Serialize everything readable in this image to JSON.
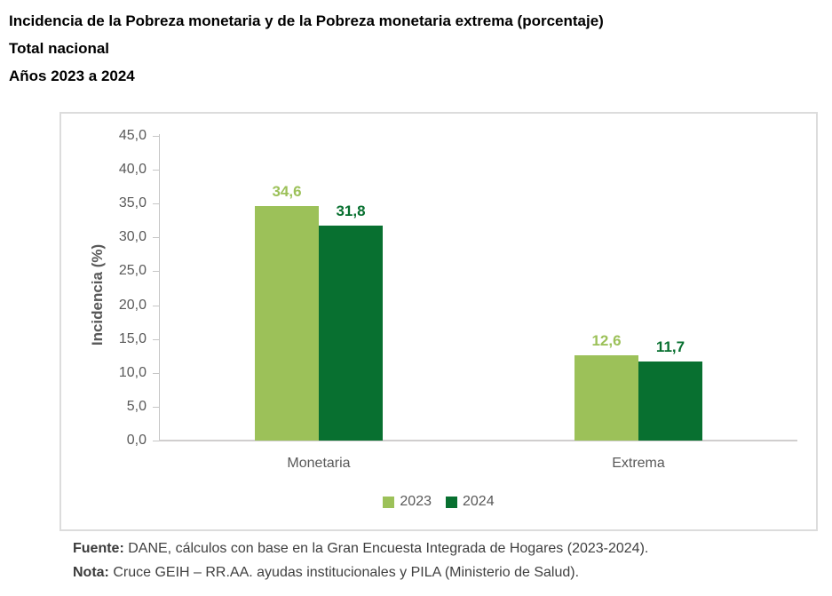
{
  "title": {
    "line1": "Incidencia de la Pobreza monetaria y de la Pobreza monetaria extrema (porcentaje)",
    "line2": "Total nacional",
    "line3": "Años 2023 a 2024"
  },
  "chart_data": {
    "type": "bar",
    "categories": [
      "Monetaria",
      "Extrema"
    ],
    "series": [
      {
        "name": "2023",
        "values": [
          34.6,
          12.6
        ],
        "color": "#9cc159"
      },
      {
        "name": "2024",
        "values": [
          31.8,
          11.7
        ],
        "color": "#087030"
      }
    ],
    "title": "Incidencia de la Pobreza monetaria y de la Pobreza monetaria extrema (porcentaje)",
    "xlabel": "",
    "ylabel": "Incidencia (%)",
    "ylim": [
      0,
      45
    ],
    "ytick_step": 5,
    "decimal_separator": ",",
    "grid": false,
    "legend_position": "bottom",
    "axis_color": "#595959"
  },
  "footer": {
    "fuente_label": "Fuente:",
    "fuente_text": " DANE, cálculos con base en la Gran Encuesta Integrada de Hogares (2023-2024).",
    "nota_label": "Nota:",
    "nota_text": " Cruce GEIH – RR.AA. ayudas institucionales y PILA (Ministerio de Salud)."
  }
}
